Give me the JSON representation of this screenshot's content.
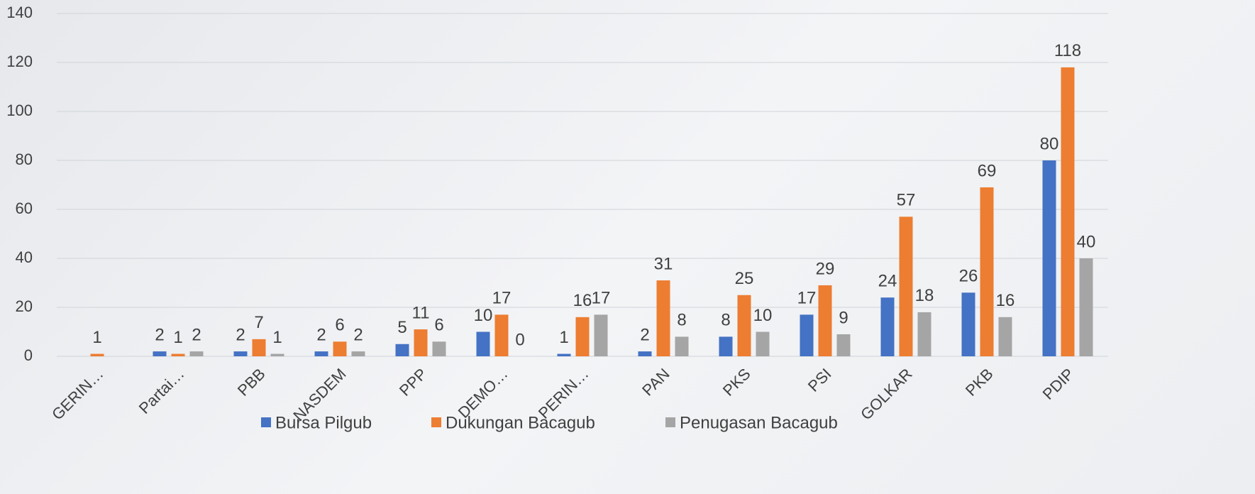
{
  "chart_data": {
    "type": "bar",
    "categories": [
      "GERIN…",
      "Partai…",
      "PBB",
      "NASDEM",
      "PPP",
      "DEMO…",
      "PERIN…",
      "PAN",
      "PKS",
      "PSI",
      "GOLKAR",
      "PKB",
      "PDIP"
    ],
    "series": [
      {
        "name": "Bursa Pilgub",
        "color": "#4472c4",
        "values": [
          null,
          2,
          2,
          2,
          5,
          10,
          1,
          2,
          8,
          17,
          24,
          26,
          80
        ]
      },
      {
        "name": "Dukungan Bacagub",
        "color": "#ed7d31",
        "values": [
          1,
          1,
          7,
          6,
          11,
          17,
          16,
          31,
          25,
          29,
          57,
          69,
          118
        ]
      },
      {
        "name": "Penugasan Bacagub",
        "color": "#a5a5a5",
        "values": [
          null,
          2,
          1,
          2,
          6,
          0,
          17,
          8,
          10,
          9,
          18,
          16,
          40
        ]
      }
    ],
    "ylim": [
      0,
      140
    ],
    "yticks": [
      0,
      20,
      40,
      60,
      80,
      100,
      120,
      140
    ],
    "grid": true,
    "legend": "bottom"
  }
}
